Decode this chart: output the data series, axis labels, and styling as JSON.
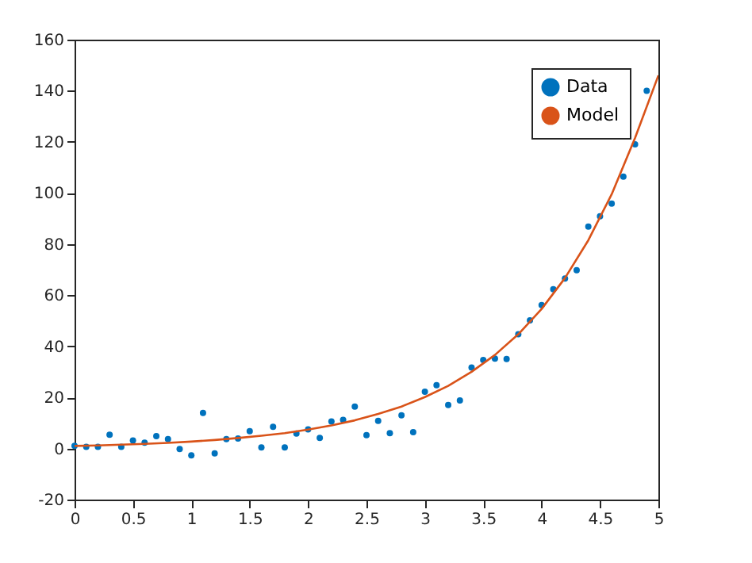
{
  "chart_data": {
    "type": "scatter",
    "xlim": [
      0,
      5
    ],
    "xticks": [
      0,
      0.5,
      1,
      1.5,
      2,
      2.5,
      3,
      3.5,
      4,
      4.5,
      5
    ],
    "ylim": [
      -20,
      160
    ],
    "yticks": [
      -20,
      0,
      20,
      40,
      60,
      80,
      100,
      120,
      140,
      160
    ],
    "legend": "top right",
    "grid": false,
    "series": [
      {
        "name": "Data",
        "marker": "circle",
        "color": "#0072bd",
        "x": [
          0,
          0.1,
          0.2,
          0.3,
          0.4,
          0.5,
          0.6,
          0.7,
          0.8,
          0.9,
          1.0,
          1.1,
          1.2,
          1.3,
          1.4,
          1.5,
          1.6,
          1.7,
          1.8,
          1.9,
          2.0,
          2.1,
          2.2,
          2.3,
          2.4,
          2.5,
          2.6,
          2.7,
          2.8,
          2.9,
          3.0,
          3.1,
          3.2,
          3.3,
          3.4,
          3.5,
          3.6,
          3.7,
          3.8,
          3.9,
          4.0,
          4.1,
          4.2,
          4.3,
          4.4,
          4.5,
          4.6,
          4.7,
          4.8,
          4.9
        ],
        "values": [
          1.0,
          0.6,
          0.6,
          5.4,
          0.6,
          3.1,
          2.3,
          4.8,
          3.7,
          -0.2,
          -2.7,
          13.9,
          -1.9,
          3.7,
          3.9,
          6.8,
          0.4,
          8.5,
          0.4,
          5.8,
          7.5,
          4.1,
          10.6,
          11.2,
          16.4,
          5.2,
          10.8,
          6.0,
          13.0,
          6.4,
          22.2,
          24.8,
          17.0,
          18.8,
          31.7,
          34.6,
          35.2,
          35.0,
          44.7,
          50.1,
          56.1,
          62.3,
          66.5,
          69.8,
          86.8,
          90.9,
          95.8,
          106.4,
          119,
          140
        ]
      },
      {
        "name": "Model",
        "type": "line",
        "line_style": "solid",
        "color": "#d95319",
        "x": [
          0,
          0.2,
          0.4,
          0.6,
          0.8,
          1.0,
          1.2,
          1.4,
          1.6,
          1.8,
          2.0,
          2.2,
          2.4,
          2.6,
          2.8,
          3.0,
          3.2,
          3.4,
          3.6,
          3.8,
          4.0,
          4.2,
          4.4,
          4.6,
          4.8,
          5.0
        ],
        "values": [
          1.0,
          1.2,
          1.5,
          1.8,
          2.2,
          2.7,
          3.3,
          4.1,
          5.0,
          6.0,
          7.4,
          9.0,
          11.0,
          13.5,
          16.4,
          20.1,
          24.5,
          30.0,
          36.6,
          44.7,
          54.6,
          66.7,
          81.5,
          99.5,
          121.5,
          146
        ]
      }
    ]
  }
}
